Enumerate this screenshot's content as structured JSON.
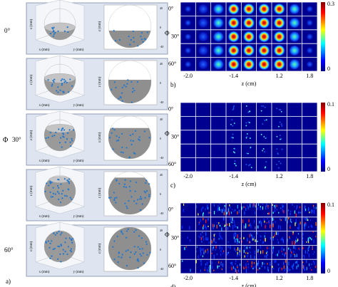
{
  "panel_a": {
    "label": "a)",
    "phi": "Φ",
    "row_labels": [
      "0°",
      "30°",
      "60°"
    ],
    "axis_labels": {
      "x": "x (mm)",
      "y": "y (mm)",
      "z": "z (mm)"
    },
    "tick_labels": [
      "40",
      "0",
      "-40"
    ]
  },
  "panels": [
    {
      "label": "b)",
      "phi": "Φ",
      "row_labels": [
        "0°",
        "30°",
        "60°"
      ],
      "x_ticks": [
        "-2.0",
        "-1.4",
        "1.2",
        "1.8"
      ],
      "x_label": "z (cm)",
      "colorbar": [
        0.3,
        0
      ]
    },
    {
      "label": "c)",
      "phi": "Φ",
      "row_labels": [
        "0°",
        "30°",
        "60°"
      ],
      "x_ticks": [
        "-2.0",
        "-1.4",
        "1.2",
        "1.8"
      ],
      "x_label": "z (cm)",
      "colorbar": [
        0.1,
        0
      ]
    },
    {
      "label": "d)",
      "phi": "Φ",
      "row_labels": [
        "0°",
        "30°",
        "60°"
      ],
      "x_ticks": [
        "-2.0",
        "-1.4",
        "1.2",
        "1.8"
      ],
      "x_label": "z (cm)",
      "colorbar": [
        0.1,
        0
      ]
    }
  ]
}
